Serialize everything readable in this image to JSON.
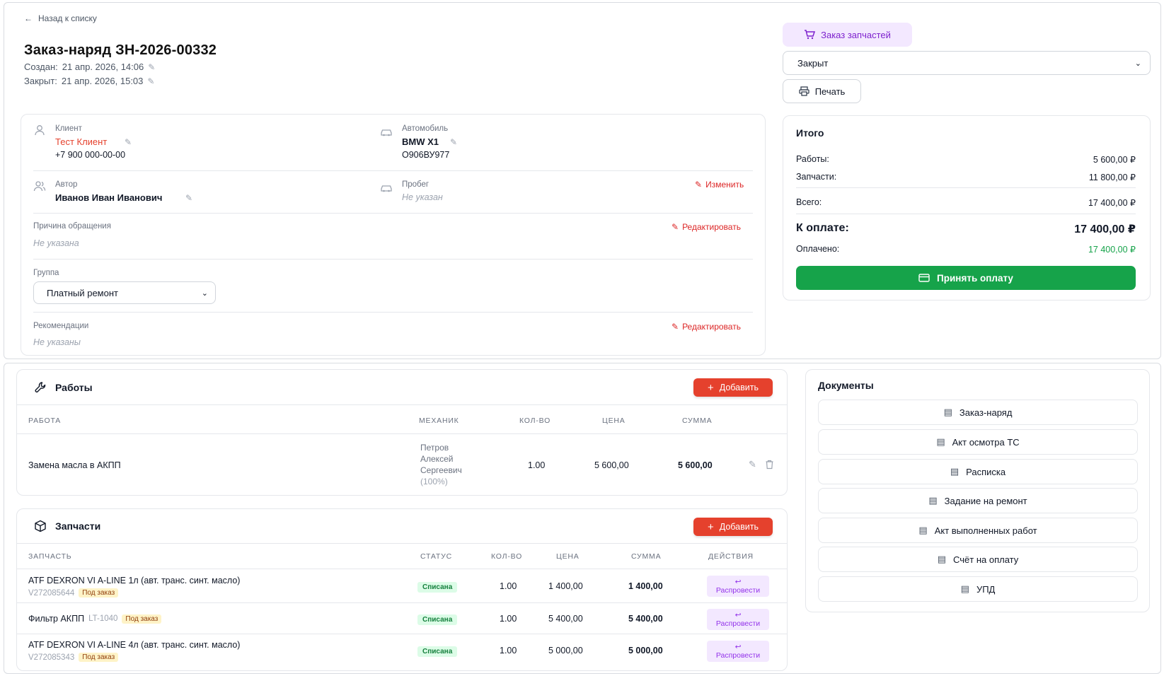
{
  "header": {
    "back_label": "Назад к списку",
    "title": "Заказ-наряд ЗН-2026-00332",
    "created_label": "Создан:",
    "created_value": "21 апр. 2026, 14:06",
    "closed_label": "Закрыт:",
    "closed_value": "21 апр. 2026, 15:03"
  },
  "actions": {
    "parts_order_label": "Заказ запчастей",
    "status_value": "Закрыт",
    "print_label": "Печать"
  },
  "info": {
    "client_label": "Клиент",
    "client_name": "Тест Клиент",
    "client_phone": "+7 900 000-00-00",
    "car_label": "Автомобиль",
    "car_model": "BMW X1",
    "car_plate": "О906ВУ977",
    "author_label": "Автор",
    "author_name": "Иванов Иван Иванович",
    "mileage_label": "Пробег",
    "mileage_value": "Не указан",
    "change_label": "Изменить",
    "reason_label": "Причина обращения",
    "reason_value": "Не указана",
    "edit_label": "Редактировать",
    "group_label": "Группа",
    "group_value": "Платный ремонт",
    "recommendations_label": "Рекомендации",
    "recommendations_value": "Не указаны"
  },
  "totals": {
    "title": "Итого",
    "works_label": "Работы:",
    "works_value": "5 600,00 ₽",
    "parts_label": "Запчасти:",
    "parts_value": "11 800,00 ₽",
    "total_label": "Всего:",
    "total_value": "17 400,00 ₽",
    "due_label": "К оплате:",
    "due_value": "17 400,00 ₽",
    "paid_label": "Оплачено:",
    "paid_value": "17 400,00 ₽",
    "pay_button": "Принять оплату",
    "paid_color": "#16a34a"
  },
  "works": {
    "title": "Работы",
    "add_label": "Добавить",
    "columns": [
      "Работа",
      "Механик",
      "Кол-во",
      "Цена",
      "Сумма"
    ],
    "rows": [
      {
        "name": "Замена масла в АКПП",
        "mechanic": [
          "Петров",
          "Алексей",
          "Сергеевич"
        ],
        "mechanic_pct": "(100%)",
        "qty": "1.00",
        "price": "5 600,00",
        "sum": "5 600,00"
      }
    ]
  },
  "parts": {
    "title": "Запчасти",
    "add_label": "Добавить",
    "columns": [
      "Запчасть",
      "Статус",
      "Кол-во",
      "Цена",
      "Сумма",
      "Действия"
    ],
    "order_badge": "Под заказ",
    "distribute_icon": "↩",
    "distribute_label": "Распровести",
    "rows": [
      {
        "name": "ATF DEXRON VI A-LINE 1л (авт. транс. синт. масло)",
        "code": "V272085644",
        "status": "Списана",
        "qty": "1.00",
        "price": "1 400,00",
        "sum": "1 400,00"
      },
      {
        "name": "Фильтр АКПП",
        "code": "LT-1040",
        "status": "Списана",
        "qty": "1.00",
        "price": "5 400,00",
        "sum": "5 400,00"
      },
      {
        "name": "ATF DEXRON VI A-LINE 4л (авт. транс. синт. масло)",
        "code": "V272085343",
        "status": "Списана",
        "qty": "1.00",
        "price": "5 000,00",
        "sum": "5 000,00"
      }
    ]
  },
  "documents": {
    "title": "Документы",
    "items": [
      "Заказ-наряд",
      "Акт осмотра ТС",
      "Расписка",
      "Задание на ремонт",
      "Акт выполненных работ",
      "Счёт на оплату",
      "УПД"
    ]
  },
  "colors": {
    "accent_red": "#e5412d",
    "accent_purple": "#7e22ce",
    "pay_green": "#16a34a"
  }
}
